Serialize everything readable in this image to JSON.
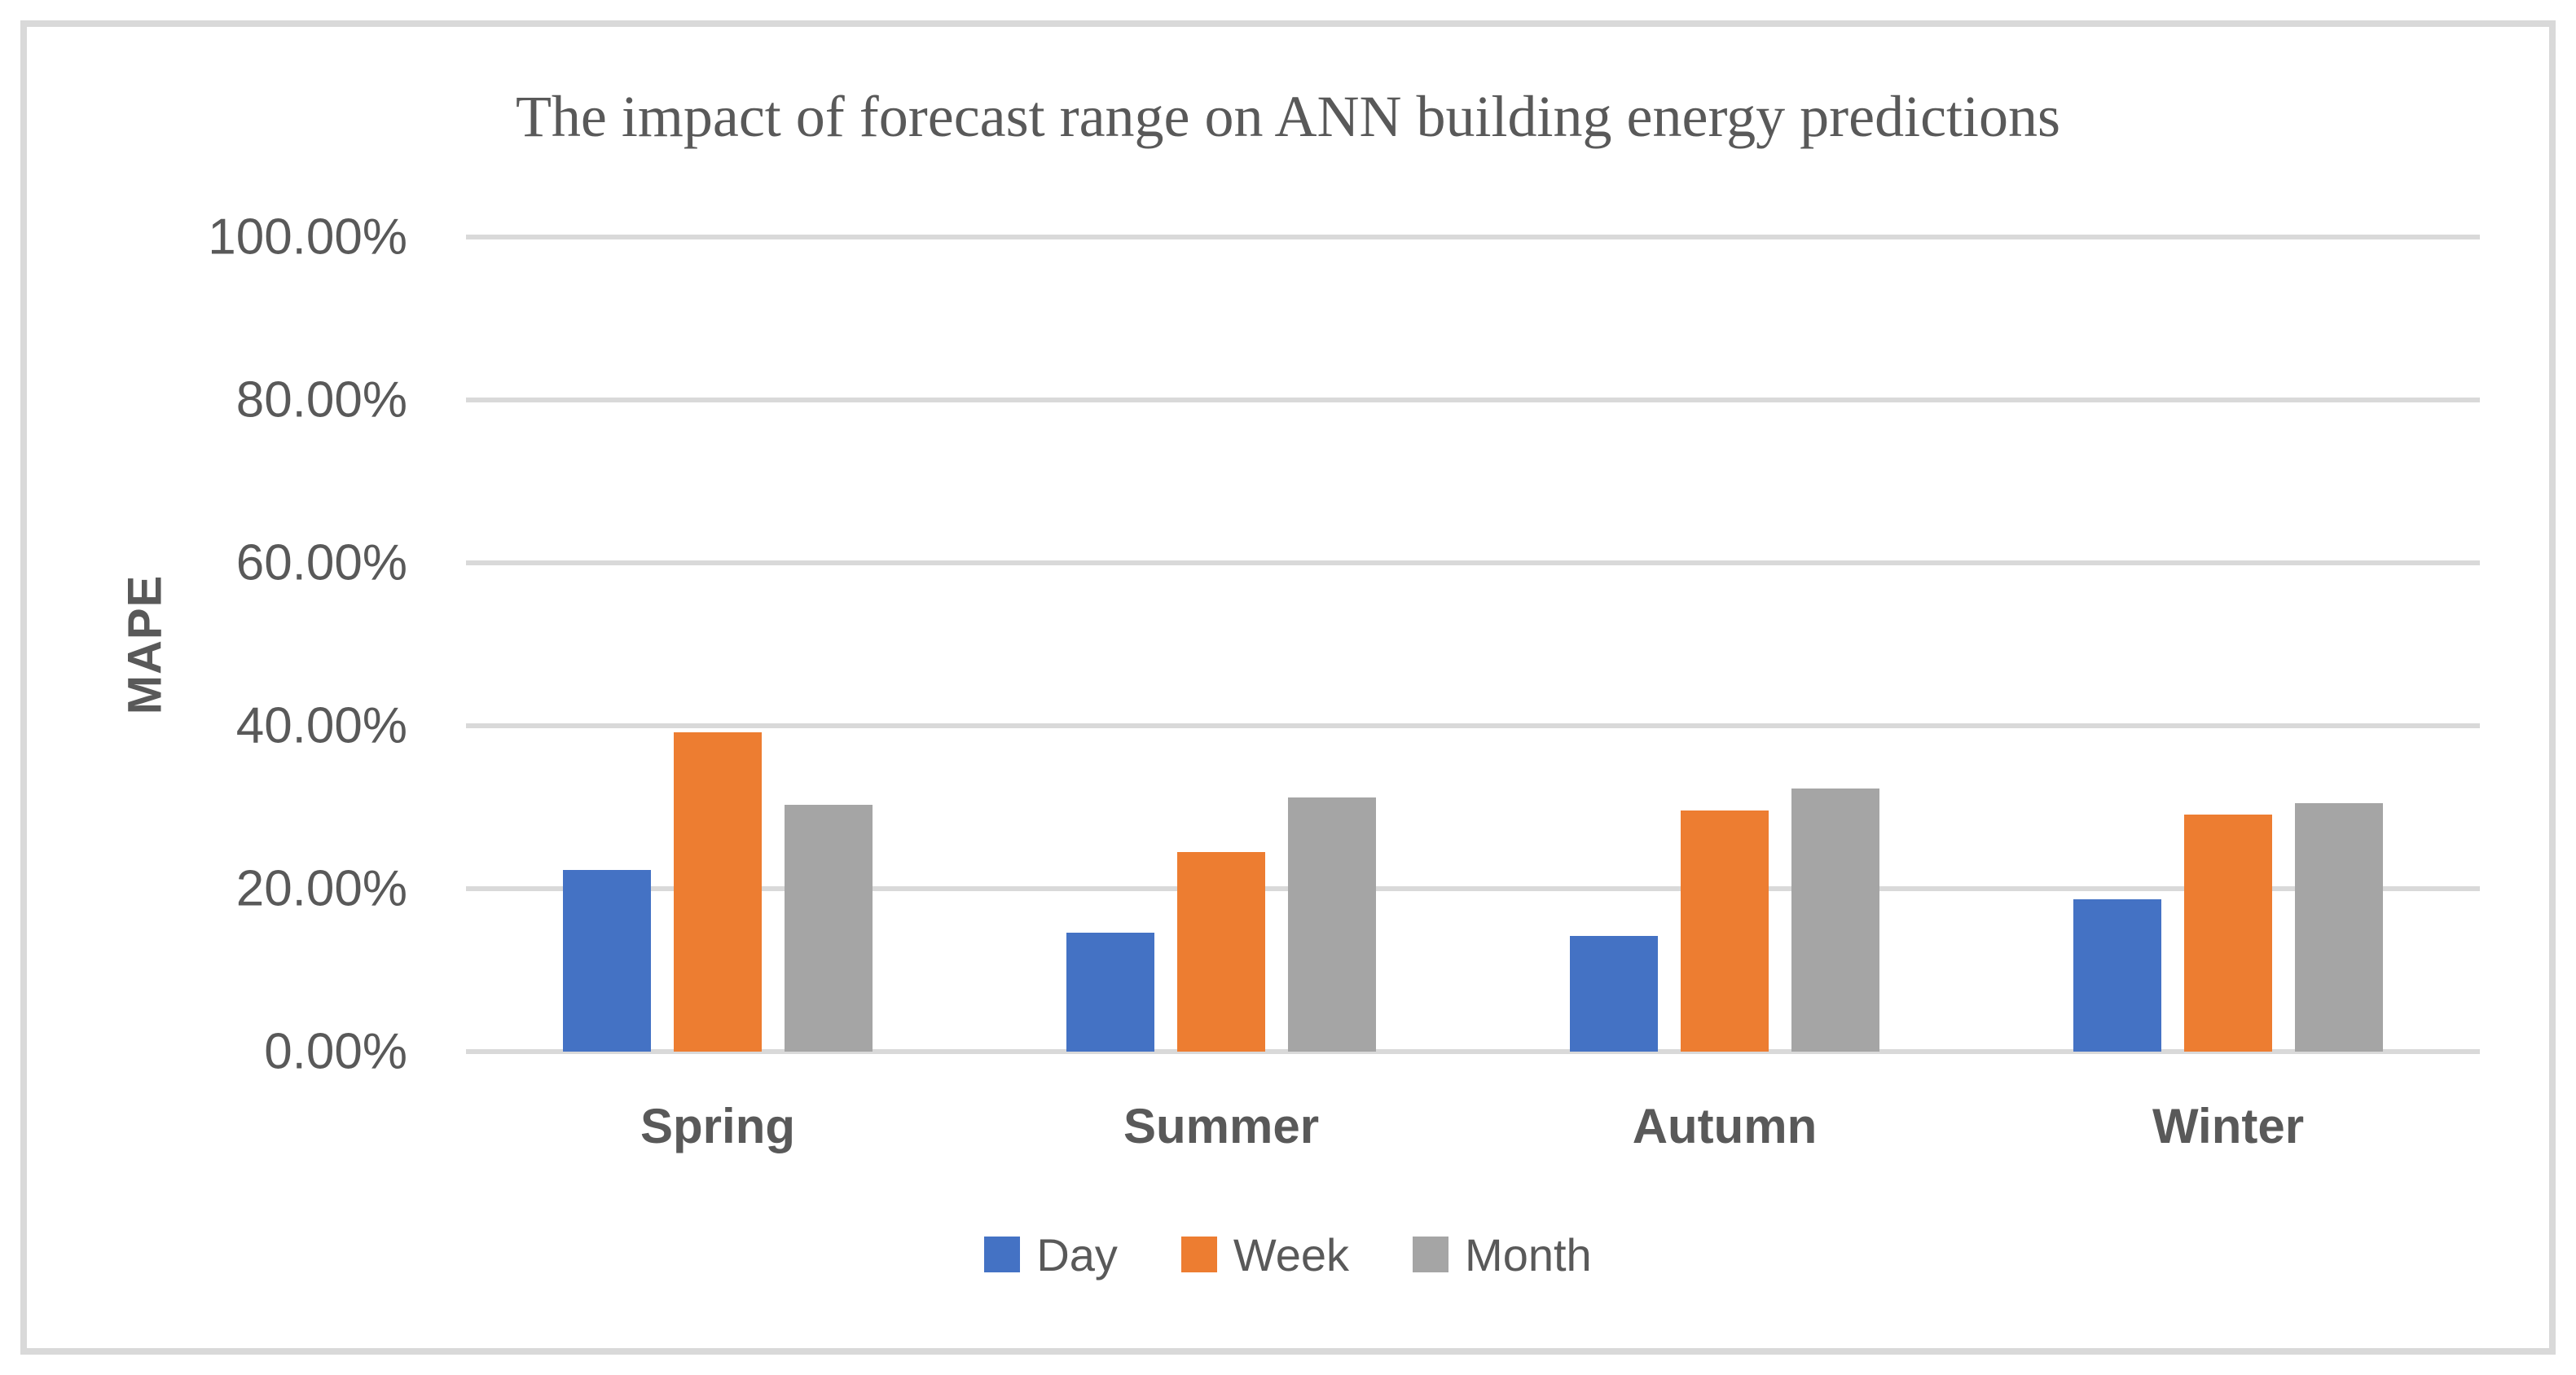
{
  "chart_data": {
    "type": "bar",
    "title": "The impact of forecast range on ANN building energy predictions",
    "ylabel": "MAPE",
    "xlabel": "",
    "categories": [
      "Spring",
      "Summer",
      "Autumn",
      "Winter"
    ],
    "series": [
      {
        "name": "Day",
        "color": "#4472C4",
        "values": [
          22.3,
          14.6,
          14.2,
          18.7
        ]
      },
      {
        "name": "Week",
        "color": "#ED7D31",
        "values": [
          39.2,
          24.5,
          29.6,
          29.1
        ]
      },
      {
        "name": "Month",
        "color": "#A5A5A5",
        "values": [
          30.3,
          31.2,
          32.3,
          30.5
        ]
      }
    ],
    "value_unit": "percent",
    "ylim": [
      0,
      100
    ],
    "y_tick_interval": 20,
    "y_ticks": [
      "0.00%",
      "20.00%",
      "40.00%",
      "60.00%",
      "80.00%",
      "100.00%"
    ],
    "grid": true,
    "legend_position": "bottom",
    "style": {
      "text_color": "#595959",
      "gridline_color": "#D9D9D9",
      "frame_border_color": "#D9D9D9",
      "background_color": "#FFFFFF"
    }
  }
}
